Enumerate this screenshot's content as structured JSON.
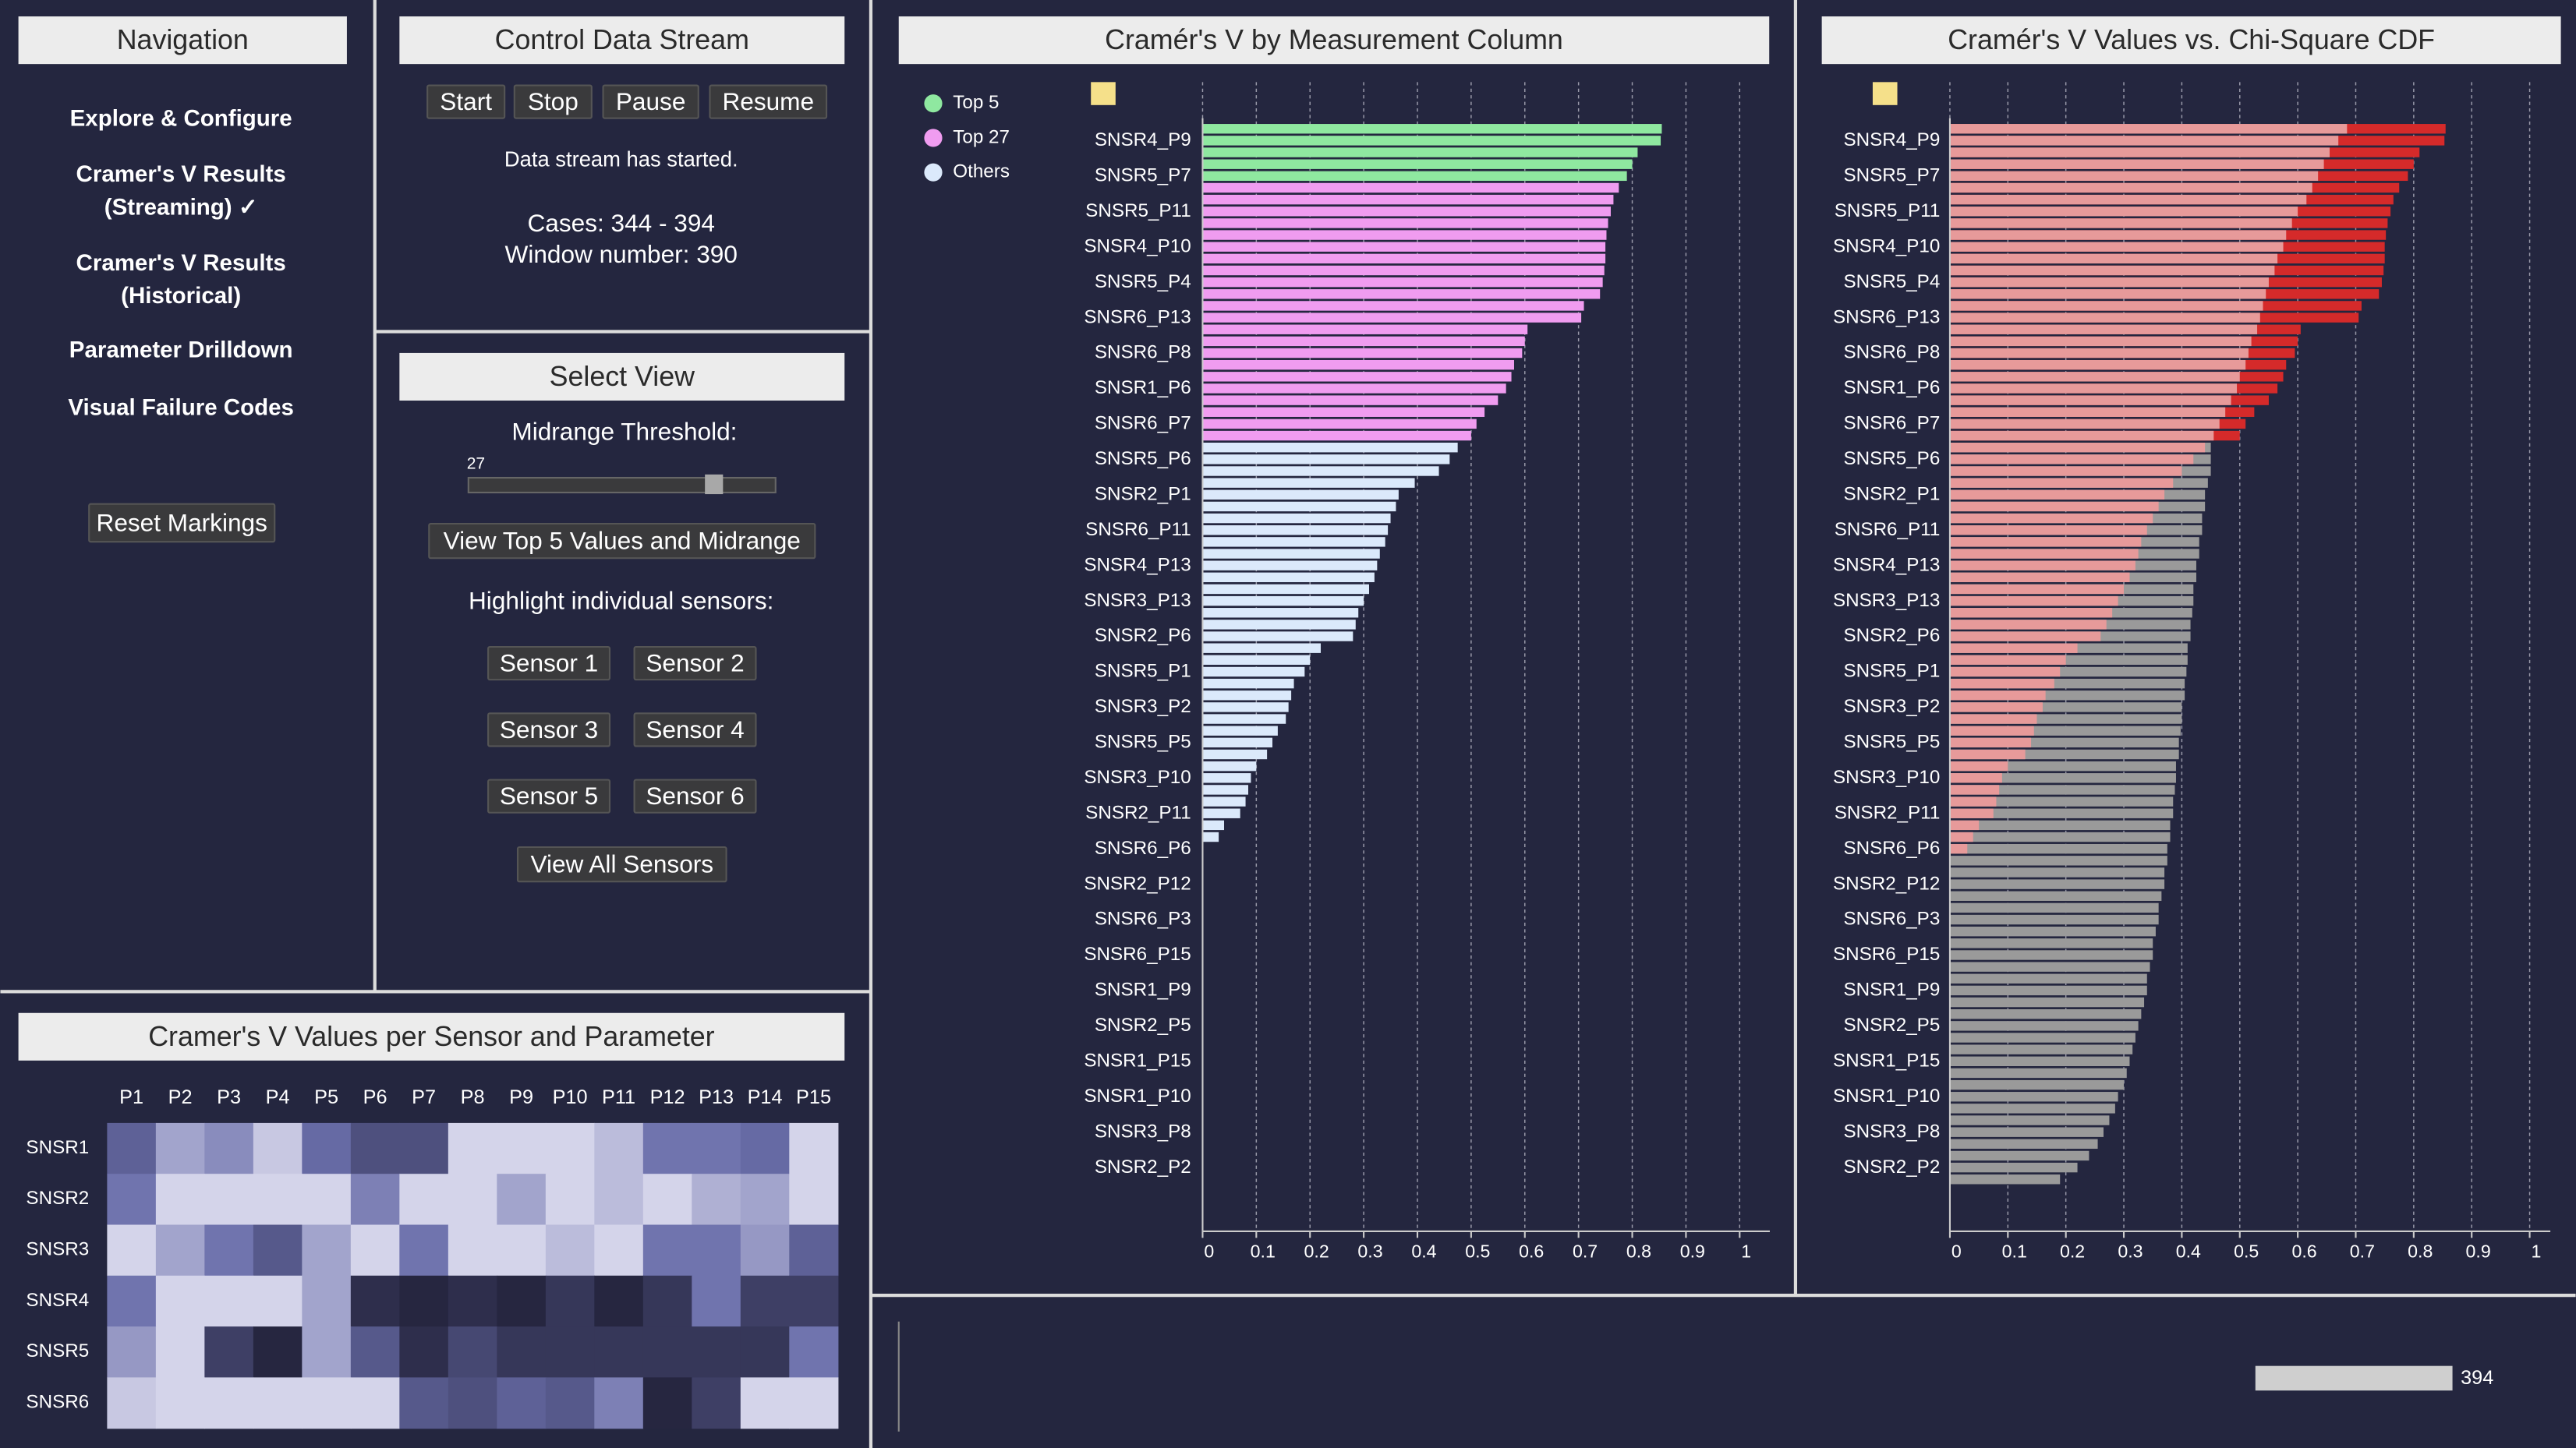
{
  "navigation": {
    "title": "Navigation",
    "items": [
      [
        "Explore & Configure"
      ],
      [
        "Cramer's V Results",
        "(Streaming) ✓"
      ],
      [
        "Cramer's V Results",
        "(Historical)"
      ],
      [
        "Parameter Drilldown"
      ],
      [
        "Visual Failure Codes"
      ]
    ],
    "reset": "Reset Markings"
  },
  "control": {
    "title": "Control Data Stream",
    "buttons": [
      "Start",
      "Stop",
      "Pause",
      "Resume"
    ],
    "status": "Data stream has started.",
    "cases": "Cases: 344 - 394",
    "window": "Window number: 390"
  },
  "select_view": {
    "title": "Select View",
    "threshold_label": "Midrange Threshold:",
    "threshold_value": 27,
    "top_button": "View Top 5 Values and Midrange",
    "highlight_label": "Highlight individual sensors:",
    "sensors": [
      "Sensor 1",
      "Sensor 2",
      "Sensor 3",
      "Sensor 4",
      "Sensor 5",
      "Sensor 6"
    ],
    "all_button": "View All Sensors"
  },
  "stream": {
    "position": 394
  },
  "chart_data": [
    {
      "type": "bar",
      "orientation": "horizontal",
      "title": "Cramér's V by Measurement Column",
      "categories": [
        null,
        "SNSR4_P9",
        null,
        null,
        "SNSR5_P7",
        null,
        null,
        "SNSR5_P11",
        null,
        null,
        "SNSR4_P10",
        null,
        null,
        "SNSR5_P4",
        null,
        null,
        "SNSR6_P13",
        null,
        null,
        "SNSR6_P8",
        null,
        null,
        "SNSR1_P6",
        null,
        null,
        "SNSR6_P7",
        null,
        null,
        "SNSR5_P6",
        null,
        null,
        "SNSR2_P1",
        null,
        null,
        "SNSR6_P11",
        null,
        null,
        "SNSR4_P13",
        null,
        null,
        "SNSR3_P13",
        null,
        null,
        "SNSR2_P6",
        null,
        null,
        "SNSR5_P1",
        null,
        null,
        "SNSR3_P2",
        null,
        null,
        "SNSR5_P5",
        null,
        null,
        "SNSR3_P10",
        null,
        null,
        "SNSR2_P11",
        null,
        null,
        "SNSR6_P6",
        null,
        null,
        "SNSR2_P12",
        null,
        null,
        "SNSR6_P3",
        null,
        null,
        "SNSR6_P15",
        null,
        null,
        "SNSR1_P9",
        null,
        null,
        "SNSR2_P5",
        null,
        null,
        "SNSR1_P15",
        null,
        null,
        "SNSR1_P10",
        null,
        null,
        "SNSR3_P8",
        null,
        null,
        "SNSR2_P2",
        null
      ],
      "series": [
        {
          "name": "Top 5",
          "color": "#8fe8a0",
          "values": [
            0.855,
            0.853,
            0.81,
            0.8,
            0.79,
            null,
            null,
            null,
            null,
            null,
            null,
            null,
            null,
            null,
            null,
            null,
            null,
            null,
            null,
            null,
            null,
            null,
            null,
            null,
            null,
            null,
            null,
            null,
            null,
            null,
            null,
            null,
            null,
            null,
            null,
            null,
            null,
            null,
            null,
            null,
            null,
            null,
            null,
            null,
            null,
            null,
            null,
            null,
            null,
            null,
            null,
            null,
            null,
            null,
            null,
            null,
            null,
            null,
            null,
            null,
            null,
            null,
            null,
            null,
            null,
            null,
            null,
            null,
            null,
            null,
            null,
            null,
            null,
            null,
            null,
            null,
            null,
            null,
            null,
            null,
            null,
            null,
            null,
            null,
            null,
            null,
            null,
            null,
            null,
            null
          ]
        },
        {
          "name": "Top 27",
          "color": "#f09cf0",
          "values": [
            null,
            null,
            null,
            null,
            null,
            0.775,
            0.765,
            0.76,
            0.755,
            0.752,
            0.75,
            0.75,
            0.748,
            0.745,
            0.74,
            0.71,
            0.705,
            0.605,
            0.6,
            0.595,
            0.58,
            0.575,
            0.565,
            0.55,
            0.525,
            0.51,
            0.5,
            null,
            null,
            null,
            null,
            null,
            null,
            null,
            null,
            null,
            null,
            null,
            null,
            null,
            null,
            null,
            null,
            null,
            null,
            null,
            null,
            null,
            null,
            null,
            null,
            null,
            null,
            null,
            null,
            null,
            null,
            null,
            null,
            null,
            null,
            null,
            null,
            null,
            null,
            null,
            null,
            null,
            null,
            null,
            null,
            null,
            null,
            null,
            null,
            null,
            null,
            null,
            null,
            null,
            null,
            null,
            null,
            null,
            null,
            null,
            null,
            null,
            null,
            null
          ]
        },
        {
          "name": "Others",
          "color": "#dbe9fb",
          "values": [
            null,
            null,
            null,
            null,
            null,
            null,
            null,
            null,
            null,
            null,
            null,
            null,
            null,
            null,
            null,
            null,
            null,
            null,
            null,
            null,
            null,
            null,
            null,
            null,
            null,
            null,
            null,
            0.475,
            0.46,
            0.44,
            0.395,
            0.365,
            0.36,
            0.35,
            0.345,
            0.34,
            0.33,
            0.325,
            0.32,
            0.31,
            0.3,
            0.29,
            0.285,
            0.28,
            0.22,
            0.2,
            0.19,
            0.17,
            0.165,
            0.16,
            0.155,
            0.14,
            0.13,
            0.12,
            0.1,
            0.09,
            0.085,
            0.08,
            0.07,
            0.04,
            0.03,
            0,
            0,
            0,
            0,
            0,
            0,
            0,
            0,
            0,
            0,
            0,
            0,
            0,
            0,
            0,
            0,
            0,
            0,
            0,
            0,
            0,
            0,
            0,
            0,
            0,
            0,
            0,
            0,
            0
          ]
        }
      ],
      "xlim": [
        0,
        1.05
      ],
      "xticks": [
        0,
        0.1,
        0.2,
        0.3,
        0.4,
        0.5,
        0.6,
        0.7,
        0.8,
        0.9,
        1
      ],
      "grid": true,
      "legend": "top-left"
    },
    {
      "type": "bar",
      "orientation": "horizontal",
      "title": "Cramér's V Values vs. Chi-Square CDF",
      "categories": [
        null,
        "SNSR4_P9",
        null,
        null,
        "SNSR5_P7",
        null,
        null,
        "SNSR5_P11",
        null,
        null,
        "SNSR4_P10",
        null,
        null,
        "SNSR5_P4",
        null,
        null,
        "SNSR6_P13",
        null,
        null,
        "SNSR6_P8",
        null,
        null,
        "SNSR1_P6",
        null,
        null,
        "SNSR6_P7",
        null,
        null,
        "SNSR5_P6",
        null,
        null,
        "SNSR2_P1",
        null,
        null,
        "SNSR6_P11",
        null,
        null,
        "SNSR4_P13",
        null,
        null,
        "SNSR3_P13",
        null,
        null,
        "SNSR2_P6",
        null,
        null,
        "SNSR5_P1",
        null,
        null,
        "SNSR3_P2",
        null,
        null,
        "SNSR5_P5",
        null,
        null,
        "SNSR3_P10",
        null,
        null,
        "SNSR2_P11",
        null,
        null,
        "SNSR6_P6",
        null,
        null,
        "SNSR2_P12",
        null,
        null,
        "SNSR6_P3",
        null,
        null,
        "SNSR6_P15",
        null,
        null,
        "SNSR1_P9",
        null,
        null,
        "SNSR2_P5",
        null,
        null,
        "SNSR1_P15",
        null,
        null,
        "SNSR1_P10",
        null,
        null,
        "SNSR3_P8",
        null,
        null,
        "SNSR2_P2",
        null
      ],
      "series": [
        {
          "color": "#d52a2a",
          "values": [
            0.855,
            0.853,
            0.81,
            0.8,
            0.79,
            0.775,
            0.765,
            0.76,
            0.755,
            0.752,
            0.75,
            0.75,
            0.748,
            0.745,
            0.74,
            0.71,
            0.705,
            0.605,
            0.6,
            0.595,
            0.58,
            0.575,
            0.565,
            0.55,
            0.525,
            0.51,
            0.5,
            null,
            null,
            null,
            null,
            null,
            null,
            null,
            null,
            null,
            null,
            null,
            null,
            null,
            null,
            null,
            null,
            null,
            null,
            null,
            null,
            null,
            null,
            null,
            null,
            null,
            null,
            null,
            null,
            null,
            null,
            null,
            null,
            null,
            null,
            null,
            null,
            null,
            null,
            null,
            null,
            null,
            null,
            null,
            null,
            null,
            null,
            null,
            null,
            null,
            null,
            null,
            null,
            null,
            null,
            null,
            null,
            null,
            null,
            null,
            null,
            null,
            null,
            null
          ]
        },
        {
          "color": "#9a9a9a",
          "values": [
            null,
            null,
            null,
            null,
            null,
            null,
            null,
            null,
            null,
            null,
            null,
            null,
            null,
            null,
            null,
            null,
            null,
            null,
            null,
            null,
            null,
            null,
            null,
            null,
            null,
            null,
            null,
            0.45,
            0.45,
            0.45,
            0.445,
            0.44,
            0.44,
            0.435,
            0.435,
            0.43,
            0.43,
            0.425,
            0.425,
            0.42,
            0.42,
            0.418,
            0.415,
            0.415,
            0.41,
            0.41,
            0.408,
            0.405,
            0.405,
            0.4,
            0.4,
            0.398,
            0.395,
            0.395,
            0.39,
            0.39,
            0.388,
            0.385,
            0.385,
            0.38,
            0.38,
            0.375,
            0.375,
            0.37,
            0.37,
            0.365,
            0.36,
            0.36,
            0.355,
            0.35,
            0.35,
            0.345,
            0.34,
            0.34,
            0.335,
            0.33,
            0.325,
            0.32,
            0.315,
            0.31,
            0.305,
            0.3,
            0.29,
            0.285,
            0.275,
            0.265,
            0.255,
            0.24,
            0.22,
            0.19
          ]
        },
        {
          "color": "#e79a9a",
          "values": [
            0.685,
            0.67,
            0.655,
            0.645,
            0.635,
            0.625,
            0.615,
            0.6,
            0.59,
            0.58,
            0.575,
            0.565,
            0.56,
            0.55,
            0.545,
            0.54,
            0.535,
            0.53,
            0.52,
            0.515,
            0.51,
            0.5,
            0.495,
            0.485,
            0.475,
            0.465,
            0.455,
            0.44,
            0.42,
            0.4,
            0.385,
            0.37,
            0.36,
            0.35,
            0.34,
            0.33,
            0.325,
            0.32,
            0.31,
            0.3,
            0.29,
            0.28,
            0.27,
            0.26,
            0.22,
            0.2,
            0.19,
            0.18,
            0.165,
            0.16,
            0.15,
            0.145,
            0.14,
            0.13,
            0.1,
            0.09,
            0.085,
            0.08,
            0.075,
            0.05,
            0.04,
            0.03,
            0,
            0,
            0,
            0,
            0,
            0,
            0,
            0,
            0,
            0,
            0,
            0,
            0,
            0,
            0,
            0,
            0,
            0,
            0,
            0,
            0,
            0,
            0,
            0,
            0,
            0,
            0,
            0
          ]
        }
      ],
      "xlim": [
        0,
        1.03
      ],
      "xticks": [
        0,
        0.1,
        0.2,
        0.3,
        0.4,
        0.5,
        0.6,
        0.7,
        0.8,
        0.9,
        1
      ],
      "grid": true
    },
    {
      "type": "heatmap",
      "title": "Cramer's V Values per Sensor and Parameter",
      "x": [
        "P1",
        "P2",
        "P3",
        "P4",
        "P5",
        "P6",
        "P7",
        "P8",
        "P9",
        "P10",
        "P11",
        "P12",
        "P13",
        "P14",
        "P15"
      ],
      "y": [
        "SNSR1",
        "SNSR2",
        "SNSR3",
        "SNSR4",
        "SNSR5",
        "SNSR6"
      ],
      "values": [
        [
          0.6,
          0.3,
          0.4,
          0.15,
          0.55,
          0.7,
          0.7,
          0.1,
          0.1,
          0.1,
          0.2,
          0.5,
          0.5,
          0.55,
          0.1
        ],
        [
          0.5,
          0.1,
          0.1,
          0.1,
          0.1,
          0.45,
          0.1,
          0.1,
          0.3,
          0.1,
          0.2,
          0.1,
          0.25,
          0.3,
          0.1
        ],
        [
          0.1,
          0.3,
          0.5,
          0.65,
          0.3,
          0.1,
          0.5,
          0.1,
          0.1,
          0.2,
          0.1,
          0.5,
          0.5,
          0.35,
          0.6
        ],
        [
          0.5,
          0.1,
          0.1,
          0.1,
          0.3,
          0.9,
          0.95,
          0.9,
          0.95,
          0.85,
          0.95,
          0.85,
          0.5,
          0.8,
          0.8
        ],
        [
          0.35,
          0.1,
          0.8,
          0.95,
          0.3,
          0.65,
          0.9,
          0.75,
          0.85,
          0.85,
          0.85,
          0.85,
          0.85,
          0.85,
          0.5
        ],
        [
          0.15,
          0.1,
          0.1,
          0.1,
          0.1,
          0.1,
          0.65,
          0.7,
          0.6,
          0.65,
          0.45,
          0.95,
          0.8,
          0.1,
          0.1
        ]
      ],
      "colors": [
        "#d4d4ea",
        "#6a6eaa",
        "#262640"
      ]
    }
  ]
}
